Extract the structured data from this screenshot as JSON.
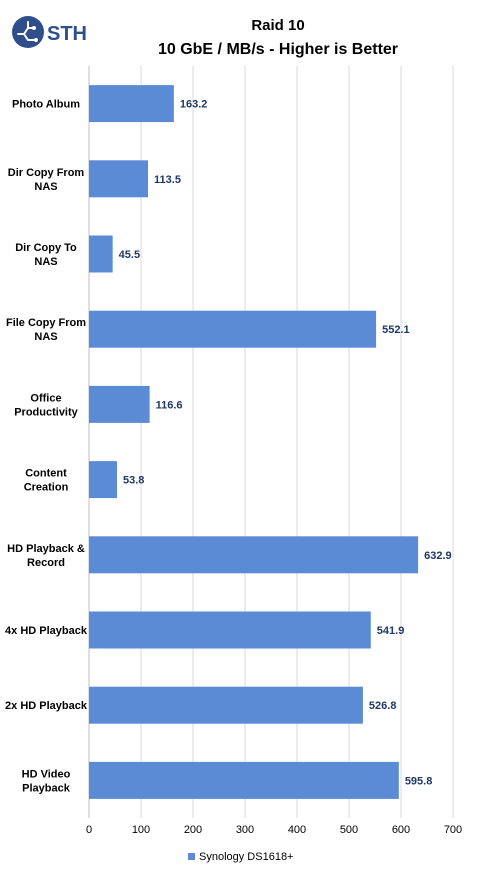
{
  "logo": {
    "text": "STH",
    "color": "#2e4f8a"
  },
  "chart_data": {
    "type": "bar",
    "orientation": "horizontal",
    "title": [
      "Raid 10",
      "10 GbE / MB/s - Higher is Better"
    ],
    "categories": [
      [
        "Photo Album"
      ],
      [
        "Dir Copy From",
        "NAS"
      ],
      [
        "Dir Copy To",
        "NAS"
      ],
      [
        "File Copy From",
        "NAS"
      ],
      [
        "Office",
        "Productivity"
      ],
      [
        "Content",
        "Creation"
      ],
      [
        "HD Playback &",
        "Record"
      ],
      [
        "4x HD Playback"
      ],
      [
        "2x HD Playback"
      ],
      [
        "HD Video",
        "Playback"
      ]
    ],
    "series": [
      {
        "name": "Synology DS1618+",
        "color": "#5b8bd5",
        "values": [
          163.2,
          113.5,
          45.5,
          552.1,
          116.6,
          53.8,
          632.9,
          541.9,
          526.8,
          595.8
        ],
        "value_labels": [
          "163.2",
          "113.5",
          "45.5",
          "552.1",
          "116.6",
          "53.8",
          "632.9",
          "541.9",
          "526.8",
          "595.8"
        ]
      }
    ],
    "xlim": [
      0,
      700
    ],
    "xticks": [
      0,
      100,
      200,
      300,
      400,
      500,
      600,
      700
    ],
    "grid": "vertical",
    "legend": "bottom-center"
  }
}
